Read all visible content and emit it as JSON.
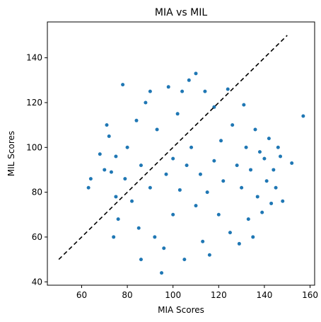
{
  "chart_data": {
    "type": "scatter",
    "title": "MIA vs MIL",
    "xlabel": "MIA Scores",
    "ylabel": "MIL Scores",
    "xlim": [
      45,
      162
    ],
    "ylim": [
      38.5,
      156
    ],
    "xticks": [
      60,
      80,
      100,
      120,
      140,
      160
    ],
    "yticks": [
      40,
      60,
      80,
      100,
      120,
      140
    ],
    "grid": false,
    "point_color": "#1f77b4",
    "reference_line": {
      "style": "dashed",
      "color": "#000000",
      "x": [
        50,
        150
      ],
      "y": [
        50,
        150
      ]
    },
    "series": [
      {
        "values": [
          [
            63,
            82
          ],
          [
            64,
            86
          ],
          [
            68,
            97
          ],
          [
            70,
            90
          ],
          [
            71,
            110
          ],
          [
            72,
            105
          ],
          [
            73,
            89
          ],
          [
            74,
            60
          ],
          [
            75,
            78
          ],
          [
            75,
            96
          ],
          [
            76,
            68
          ],
          [
            78,
            128
          ],
          [
            79,
            86
          ],
          [
            80,
            100
          ],
          [
            82,
            76
          ],
          [
            84,
            112
          ],
          [
            85,
            64
          ],
          [
            86,
            50
          ],
          [
            86,
            92
          ],
          [
            88,
            120
          ],
          [
            90,
            125
          ],
          [
            90,
            82
          ],
          [
            92,
            60
          ],
          [
            93,
            108
          ],
          [
            95,
            44
          ],
          [
            96,
            55
          ],
          [
            97,
            88
          ],
          [
            98,
            127
          ],
          [
            100,
            95
          ],
          [
            100,
            70
          ],
          [
            102,
            115
          ],
          [
            103,
            81
          ],
          [
            104,
            125
          ],
          [
            105,
            50
          ],
          [
            106,
            92
          ],
          [
            107,
            130
          ],
          [
            108,
            100
          ],
          [
            110,
            133
          ],
          [
            110,
            74
          ],
          [
            112,
            88
          ],
          [
            113,
            58
          ],
          [
            114,
            125
          ],
          [
            115,
            80
          ],
          [
            116,
            52
          ],
          [
            118,
            118
          ],
          [
            118,
            94
          ],
          [
            120,
            70
          ],
          [
            121,
            103
          ],
          [
            122,
            85
          ],
          [
            124,
            126
          ],
          [
            125,
            62
          ],
          [
            126,
            110
          ],
          [
            128,
            92
          ],
          [
            129,
            57
          ],
          [
            130,
            82
          ],
          [
            131,
            119
          ],
          [
            132,
            100
          ],
          [
            133,
            68
          ],
          [
            134,
            90
          ],
          [
            135,
            60
          ],
          [
            136,
            108
          ],
          [
            137,
            78
          ],
          [
            138,
            98
          ],
          [
            139,
            71
          ],
          [
            140,
            95
          ],
          [
            141,
            85
          ],
          [
            142,
            104
          ],
          [
            143,
            75
          ],
          [
            144,
            90
          ],
          [
            145,
            82
          ],
          [
            146,
            100
          ],
          [
            147,
            96
          ],
          [
            148,
            76
          ],
          [
            152,
            93
          ],
          [
            157,
            114
          ]
        ]
      }
    ]
  }
}
